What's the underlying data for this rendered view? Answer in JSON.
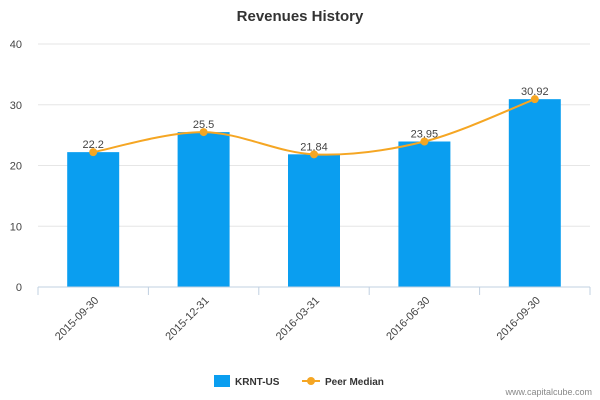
{
  "chart_data": {
    "type": "bar",
    "title": "Revenues History",
    "categories": [
      "2015-09-30",
      "2015-12-31",
      "2016-03-31",
      "2016-06-30",
      "2016-09-30"
    ],
    "series": [
      {
        "name": "KRNT-US",
        "type": "bar",
        "values": [
          22.2,
          25.5,
          21.84,
          23.95,
          30.92
        ],
        "color": "#0a9ef0"
      },
      {
        "name": "Peer Median",
        "type": "line",
        "values": [
          22.2,
          25.5,
          21.84,
          23.95,
          30.92
        ],
        "color": "#f5a623"
      }
    ],
    "data_labels": [
      "22.2",
      "25.5",
      "21.84",
      "23.95",
      "30.92"
    ],
    "ylim": [
      0,
      40
    ],
    "yticks": [
      0,
      10,
      20,
      30,
      40
    ],
    "grid": true,
    "legend": "bottom-center"
  },
  "credit": "www.capitalcube.com"
}
